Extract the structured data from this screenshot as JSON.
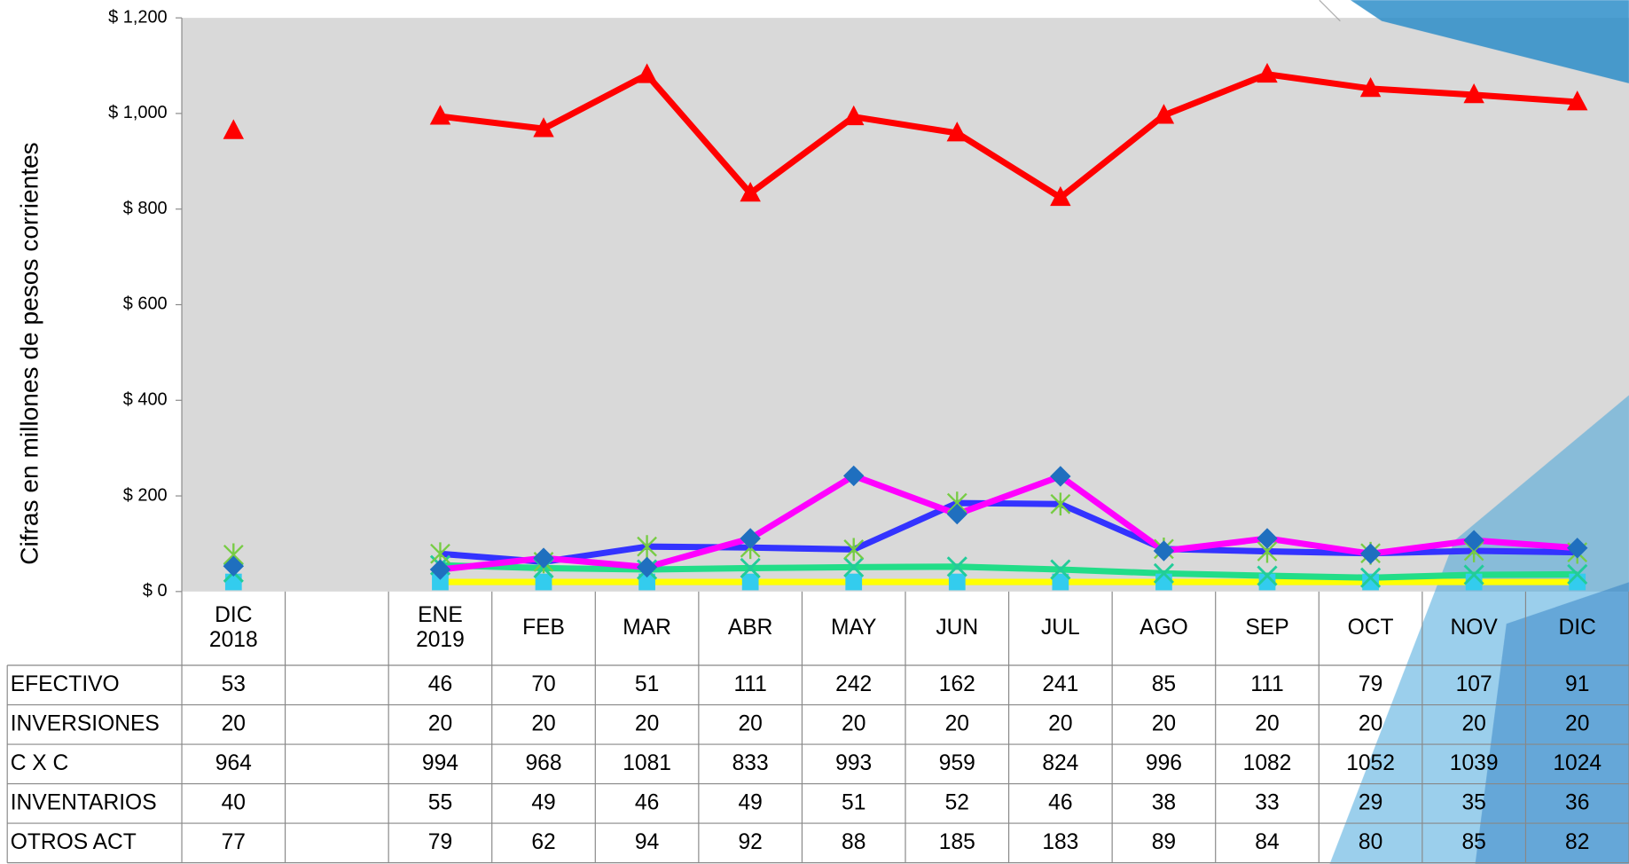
{
  "chart_data": {
    "type": "line",
    "y_label": "Cifras en millones de pesos corrientes",
    "categories": [
      "DIC 2018",
      null,
      "ENE 2019",
      "FEB",
      "MAR",
      "ABR",
      "MAY",
      "JUN",
      "JUL",
      "AGO",
      "SEP",
      "OCT",
      "NOV",
      "DIC"
    ],
    "ylim": [
      0,
      1200
    ],
    "yticks": [
      {
        "value": 0,
        "label": "$ 0"
      },
      {
        "value": 200,
        "label": "$ 200"
      },
      {
        "value": 400,
        "label": "$ 400"
      },
      {
        "value": 600,
        "label": "$ 600"
      },
      {
        "value": 800,
        "label": "$ 800"
      },
      {
        "value": 1000,
        "label": "$ 1,000"
      },
      {
        "value": 1200,
        "label": "$ 1,200"
      }
    ],
    "plot_background": "#d9d9d9",
    "series": [
      {
        "name": "EFECTIVO",
        "color": "#ff00ff",
        "marker": "diamond",
        "marker_color": "#1f6fbf",
        "values": [
          53,
          null,
          46,
          70,
          51,
          111,
          242,
          162,
          241,
          85,
          111,
          79,
          107,
          91
        ]
      },
      {
        "name": "INVERSIONES",
        "color": "#ffff00",
        "marker": "square",
        "marker_color": "#33ccee",
        "values": [
          20,
          null,
          20,
          20,
          20,
          20,
          20,
          20,
          20,
          20,
          20,
          20,
          20,
          20
        ]
      },
      {
        "name": "C X C",
        "color": "#ff0000",
        "marker": "triangle",
        "marker_color": "#ff0000",
        "values": [
          964,
          null,
          994,
          968,
          1081,
          833,
          993,
          959,
          824,
          996,
          1082,
          1052,
          1039,
          1024
        ]
      },
      {
        "name": "INVENTARIOS",
        "color": "#22dd88",
        "marker": "x",
        "marker_color": "#22cc99",
        "values": [
          40,
          null,
          55,
          49,
          46,
          49,
          51,
          52,
          46,
          38,
          33,
          29,
          35,
          36
        ]
      },
      {
        "name": "OTROS ACT",
        "color": "#3333ff",
        "marker": "star",
        "marker_color": "#77cc44",
        "values": [
          77,
          null,
          79,
          62,
          94,
          92,
          88,
          185,
          183,
          89,
          84,
          80,
          85,
          82
        ]
      }
    ]
  }
}
